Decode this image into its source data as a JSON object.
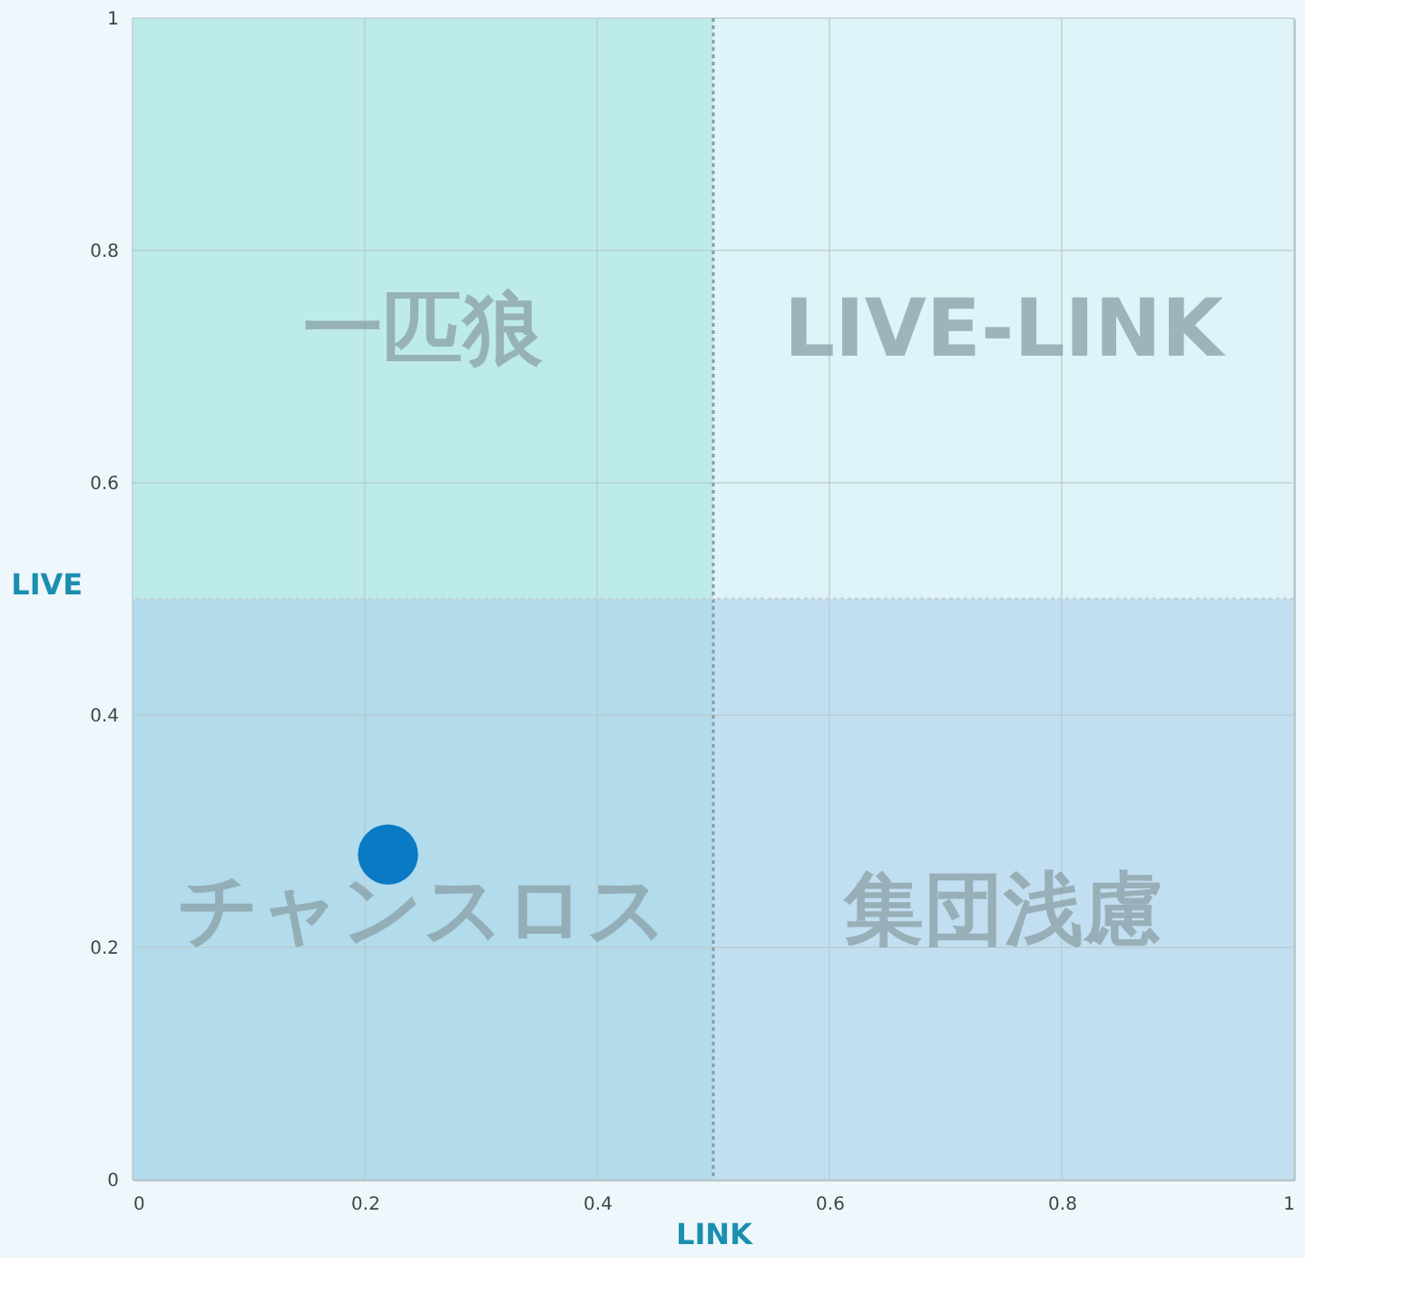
{
  "chart_data": {
    "type": "scatter",
    "xlabel": "LINK",
    "ylabel": "LIVE",
    "x": [
      0.22
    ],
    "values": [
      0.28
    ],
    "color": "#0a7ac4",
    "marker": "circle",
    "xlim": [
      0,
      1
    ],
    "ylim": [
      0,
      1
    ],
    "xticks": [
      0,
      0.2,
      0.4,
      0.6,
      0.8,
      1
    ],
    "yticks": [
      0,
      0.2,
      0.4,
      0.6,
      0.8,
      1
    ],
    "grid": true,
    "bands": [
      {
        "axis": "x",
        "from": 0,
        "to": 0.5,
        "color": "#9fe3df"
      },
      {
        "axis": "y",
        "from": 0,
        "to": 0.5,
        "color": "#a9cdeb"
      }
    ],
    "ref_lines": [
      {
        "axis": "x",
        "value": 0.5,
        "line_style": "dotted",
        "color": "#8c9a9e"
      },
      {
        "axis": "y",
        "value": 0.5,
        "line_style": "dotted",
        "color": "#c4d2d6"
      }
    ],
    "annotations": [
      "一匹狼",
      "LIVE-LINK",
      "チャンスロス",
      "集団浅慮"
    ]
  }
}
